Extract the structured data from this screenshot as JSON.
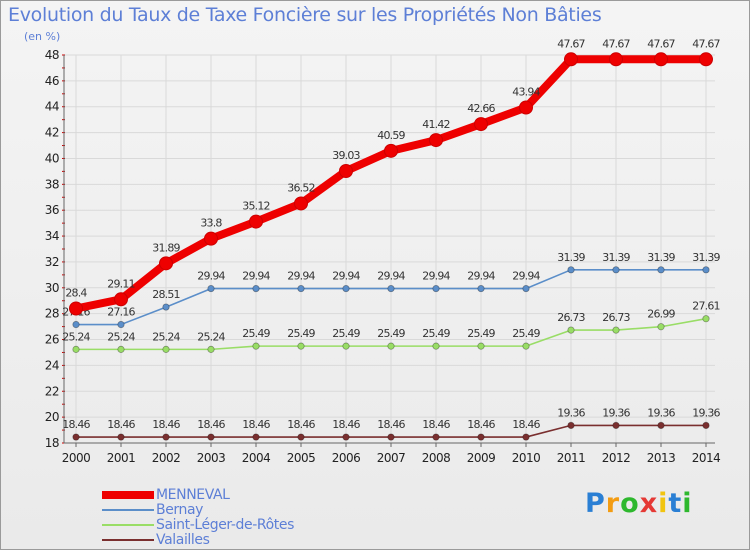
{
  "title": "Evolution du Taux de Taxe Foncière sur les Propriétés Non Bâties",
  "unit_label": "(en %)",
  "colors": {
    "title": "#5d7fd6",
    "grid": "#d9d9d9",
    "axis": "#666666",
    "tick_mark": "#cc0000"
  },
  "chart_data": {
    "type": "line",
    "title": "Evolution du Taux de Taxe Foncière sur les Propriétés Non Bâties",
    "ylabel": "(en %)",
    "xlabel": "",
    "categories": [
      "2000",
      "2001",
      "2002",
      "2003",
      "2004",
      "2005",
      "2006",
      "2007",
      "2008",
      "2009",
      "2010",
      "2011",
      "2012",
      "2013",
      "2014"
    ],
    "ylim": [
      18,
      48
    ],
    "yticks": [
      18,
      20,
      22,
      24,
      26,
      28,
      30,
      32,
      34,
      36,
      38,
      40,
      42,
      44,
      46,
      48
    ],
    "grid": true,
    "series": [
      {
        "name": "MENNEVAL",
        "color": "#ee0000",
        "values": [
          28.4,
          29.11,
          31.89,
          33.8,
          35.12,
          36.52,
          39.03,
          40.59,
          41.42,
          42.66,
          43.94,
          47.67,
          47.67,
          47.67,
          47.67
        ],
        "labels": [
          "28.4",
          "29.11",
          "31.89",
          "33.8",
          "35.12",
          "36.52",
          "39.03",
          "40.59",
          "41.42",
          "42.66",
          "43.94",
          "47.67",
          "47.67",
          "47.67",
          "47.67"
        ]
      },
      {
        "name": "Bernay",
        "color": "#5b8ec9",
        "values": [
          27.16,
          27.16,
          28.51,
          29.94,
          29.94,
          29.94,
          29.94,
          29.94,
          29.94,
          29.94,
          29.94,
          31.39,
          31.39,
          31.39,
          31.39
        ],
        "labels": [
          "27.16",
          "27.16",
          "28.51",
          "29.94",
          "29.94",
          "29.94",
          "29.94",
          "29.94",
          "29.94",
          "29.94",
          "29.94",
          "31.39",
          "31.39",
          "31.39",
          "31.39"
        ]
      },
      {
        "name": "Saint-Léger-de-Rôtes",
        "color": "#99dd66",
        "values": [
          25.24,
          25.24,
          25.24,
          25.24,
          25.49,
          25.49,
          25.49,
          25.49,
          25.49,
          25.49,
          25.49,
          26.73,
          26.73,
          26.99,
          27.61
        ],
        "labels": [
          "25.24",
          "25.24",
          "25.24",
          "25.24",
          "25.49",
          "25.49",
          "25.49",
          "25.49",
          "25.49",
          "25.49",
          "25.49",
          "26.73",
          "26.73",
          "26.99",
          "27.61"
        ]
      },
      {
        "name": "Valailles",
        "color": "#7a2f2f",
        "values": [
          18.46,
          18.46,
          18.46,
          18.46,
          18.46,
          18.46,
          18.46,
          18.46,
          18.46,
          18.46,
          18.46,
          19.36,
          19.36,
          19.36,
          19.36
        ],
        "labels": [
          "18.46",
          "18.46",
          "18.46",
          "18.46",
          "18.46",
          "18.46",
          "18.46",
          "18.46",
          "18.46",
          "18.46",
          "18.46",
          "19.36",
          "19.36",
          "19.36",
          "19.36"
        ]
      }
    ],
    "legend_position": "bottom-left"
  },
  "logo": {
    "letters": [
      "P",
      "r",
      "o",
      "x",
      "i",
      "t",
      "i"
    ],
    "colors": [
      "#2a7fd4",
      "#f39c12",
      "#2eb82e",
      "#e53935",
      "#f1c40f",
      "#2a7fd4",
      "#2eb82e"
    ]
  }
}
